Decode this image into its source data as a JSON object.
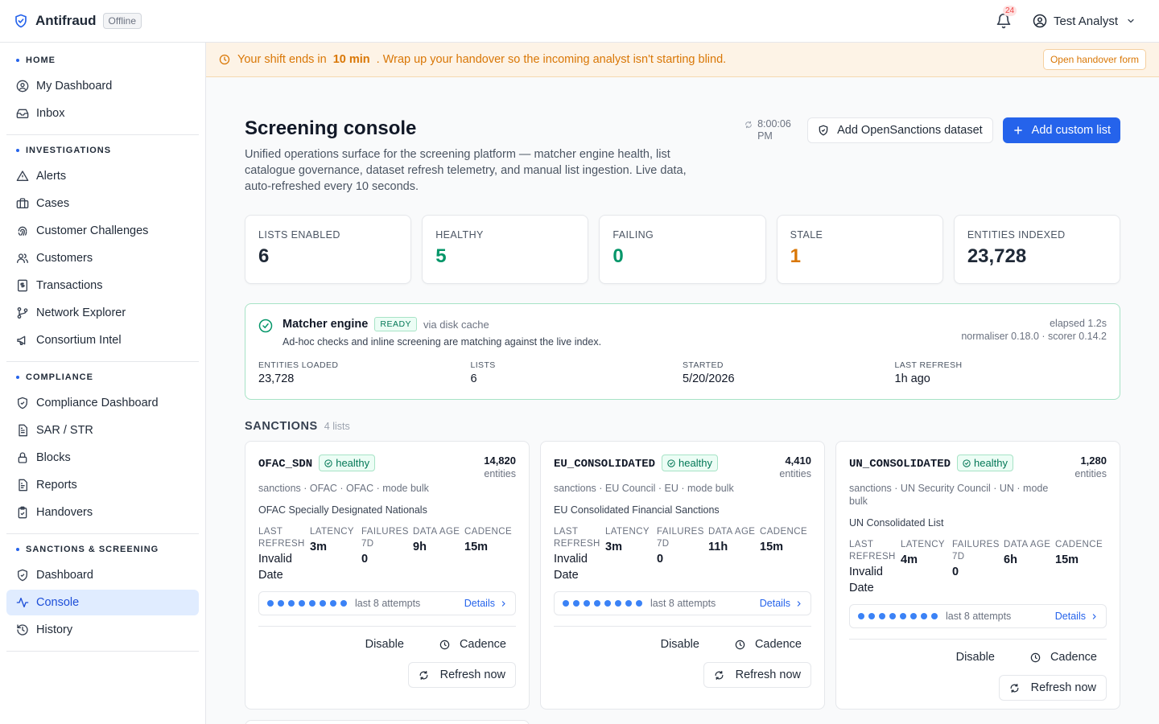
{
  "topbar": {
    "brand": "Antifraud",
    "status_badge": "Offline",
    "notif_count": "24",
    "user_name": "Test Analyst"
  },
  "sidebar": {
    "sections": [
      {
        "title": "HOME",
        "items": [
          {
            "label": "My Dashboard",
            "icon": "user-circle-icon"
          },
          {
            "label": "Inbox",
            "icon": "inbox-icon"
          }
        ]
      },
      {
        "title": "INVESTIGATIONS",
        "items": [
          {
            "label": "Alerts",
            "icon": "warning-triangle-icon"
          },
          {
            "label": "Cases",
            "icon": "briefcase-icon"
          },
          {
            "label": "Customer Challenges",
            "icon": "fingerprint-icon"
          },
          {
            "label": "Customers",
            "icon": "users-icon"
          },
          {
            "label": "Transactions",
            "icon": "receipt-icon"
          },
          {
            "label": "Network Explorer",
            "icon": "git-branch-icon"
          },
          {
            "label": "Consortium Intel",
            "icon": "megaphone-icon"
          }
        ]
      },
      {
        "title": "COMPLIANCE",
        "items": [
          {
            "label": "Compliance Dashboard",
            "icon": "shield-check-icon"
          },
          {
            "label": "SAR / STR",
            "icon": "document-icon"
          },
          {
            "label": "Blocks",
            "icon": "lock-icon"
          },
          {
            "label": "Reports",
            "icon": "report-icon"
          },
          {
            "label": "Handovers",
            "icon": "clipboard-check-icon"
          }
        ]
      },
      {
        "title": "SANCTIONS & SCREENING",
        "items": [
          {
            "label": "Dashboard",
            "icon": "shield-check-icon"
          },
          {
            "label": "Console",
            "icon": "activity-icon",
            "active": true
          },
          {
            "label": "History",
            "icon": "history-icon"
          }
        ]
      }
    ]
  },
  "banner": {
    "text_before": "Your shift ends in",
    "highlight": "10 min",
    "text_after": ". Wrap up your handover so the incoming analyst isn't starting blind.",
    "button": "Open handover form"
  },
  "page": {
    "title": "Screening console",
    "description": "Unified operations surface for the screening platform — matcher engine health, list catalogue governance, dataset refresh telemetry, and manual list ingestion. Live data, auto-refreshed every 10 seconds.",
    "refresh_time": "8:00:06 PM",
    "add_dataset_label": "Add OpenSanctions dataset",
    "add_list_label": "Add custom list"
  },
  "stats": [
    {
      "label": "LISTS ENABLED",
      "value": "6",
      "color": "#1f2937"
    },
    {
      "label": "HEALTHY",
      "value": "5",
      "color": "#059669"
    },
    {
      "label": "FAILING",
      "value": "0",
      "color": "#059669"
    },
    {
      "label": "STALE",
      "value": "1",
      "color": "#d97706"
    },
    {
      "label": "ENTITIES INDEXED",
      "value": "23,728",
      "color": "#1f2937"
    }
  ],
  "engine": {
    "name": "Matcher engine",
    "status": "READY",
    "source": "via disk cache",
    "subtitle": "Ad-hoc checks and inline screening are matching against the live index.",
    "elapsed": "elapsed 1.2s",
    "versions": "normaliser 0.18.0 · scorer 0.14.2",
    "stats": [
      {
        "label": "ENTITIES LOADED",
        "value": "23,728"
      },
      {
        "label": "LISTS",
        "value": "6"
      },
      {
        "label": "STARTED",
        "value": "5/20/2026"
      },
      {
        "label": "LAST REFRESH",
        "value": "1h ago"
      }
    ]
  },
  "group": {
    "title": "SANCTIONS",
    "count": "4 lists"
  },
  "lists": [
    {
      "name": "OFAC_SDN",
      "status": "healthy",
      "count": "14,820",
      "count_label": "entities",
      "meta": "sanctions · OFAC · OFAC · mode bulk",
      "description": "OFAC Specially Designated Nationals",
      "metrics": [
        {
          "label": "LAST REFRESH",
          "value": "Invalid Date"
        },
        {
          "label": "LATENCY",
          "value": "3m"
        },
        {
          "label": "FAILURES 7D",
          "value": "0"
        },
        {
          "label": "DATA AGE",
          "value": "9h"
        },
        {
          "label": "CADENCE",
          "value": "15m"
        }
      ],
      "attempts_label": "last 8 attempts",
      "details": "Details",
      "disable": "Disable",
      "cadence": "Cadence",
      "refresh": "Refresh now"
    },
    {
      "name": "EU_CONSOLIDATED",
      "status": "healthy",
      "count": "4,410",
      "count_label": "entities",
      "meta": "sanctions · EU Council · EU · mode bulk",
      "description": "EU Consolidated Financial Sanctions",
      "metrics": [
        {
          "label": "LAST REFRESH",
          "value": "Invalid Date"
        },
        {
          "label": "LATENCY",
          "value": "3m"
        },
        {
          "label": "FAILURES 7D",
          "value": "0"
        },
        {
          "label": "DATA AGE",
          "value": "11h"
        },
        {
          "label": "CADENCE",
          "value": "15m"
        }
      ],
      "attempts_label": "last 8 attempts",
      "details": "Details",
      "disable": "Disable",
      "cadence": "Cadence",
      "refresh": "Refresh now"
    },
    {
      "name": "UN_CONSOLIDATED",
      "status": "healthy",
      "count": "1,280",
      "count_label": "entities",
      "meta": "sanctions · UN Security Council · UN · mode bulk",
      "description": "UN Consolidated List",
      "metrics": [
        {
          "label": "LAST REFRESH",
          "value": "Invalid Date"
        },
        {
          "label": "LATENCY",
          "value": "4m"
        },
        {
          "label": "FAILURES 7D",
          "value": "0"
        },
        {
          "label": "DATA AGE",
          "value": "6h"
        },
        {
          "label": "CADENCE",
          "value": "15m"
        }
      ],
      "attempts_label": "last 8 attempts",
      "details": "Details",
      "disable": "Disable",
      "cadence": "Cadence",
      "refresh": "Refresh now"
    }
  ]
}
